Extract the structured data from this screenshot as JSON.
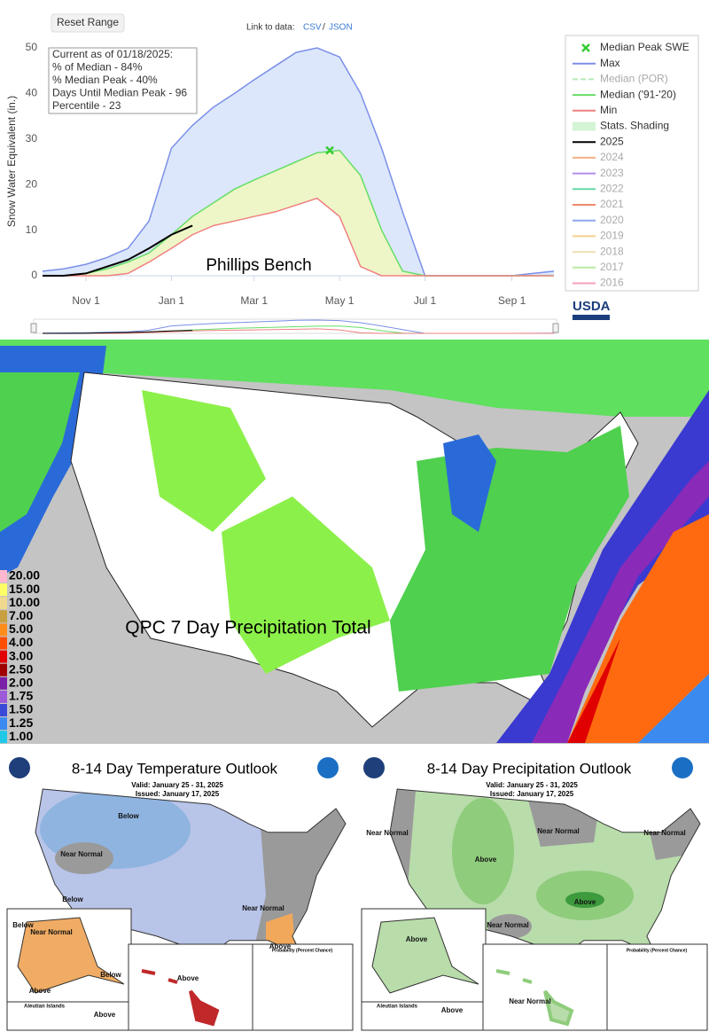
{
  "chart_data": {
    "type": "line",
    "title": "Phillips Bench",
    "y_label": "Snow Water Equivalent (in.)",
    "annotation": [
      "Current as of 01/18/2025:",
      "% of Median - 84%",
      "% Median Peak - 40%",
      "Days Until Median Peak - 96",
      "Percentile - 23"
    ],
    "x": [
      0,
      15,
      31,
      46,
      61,
      76,
      92,
      107,
      122,
      137,
      151,
      166,
      181,
      196,
      212,
      227,
      242,
      257,
      273,
      288,
      304,
      319,
      335,
      350,
      365
    ],
    "xlim": [
      0,
      365
    ],
    "xticks": [
      {
        "value": 31,
        "label": "Nov 1"
      },
      {
        "value": 92,
        "label": "Jan 1"
      },
      {
        "value": 151,
        "label": "Mar 1"
      },
      {
        "value": 212,
        "label": "May 1"
      },
      {
        "value": 273,
        "label": "Jul 1"
      },
      {
        "value": 335,
        "label": "Sep 1"
      }
    ],
    "ylim": [
      0,
      50
    ],
    "yticks": [
      0,
      10,
      20,
      30,
      40,
      50
    ],
    "grid": false,
    "series": [
      {
        "name": "Max",
        "color": "#7b8fe8",
        "values": [
          1,
          1.5,
          2.5,
          4,
          6,
          12,
          28,
          33,
          37,
          40,
          43,
          46,
          49,
          50,
          48,
          40,
          28,
          14,
          0,
          0,
          0,
          0,
          0,
          0.5,
          1
        ]
      },
      {
        "name": "Median ('91-'20)",
        "color": "#66dd66",
        "values": [
          0,
          0,
          0.5,
          1.5,
          3,
          5,
          9,
          13,
          16,
          19,
          21,
          23,
          25,
          27,
          27.5,
          22,
          10,
          1,
          0,
          0,
          0,
          0,
          0,
          0,
          0
        ]
      },
      {
        "name": "Min",
        "color": "#f08080",
        "values": [
          0,
          0,
          0,
          0,
          0.5,
          3,
          6,
          9,
          11,
          12,
          13,
          14,
          15.5,
          17,
          13,
          2,
          0,
          0,
          0,
          0,
          0,
          0,
          0,
          0,
          0
        ]
      },
      {
        "name": "2025",
        "color": "#000000",
        "values": [
          0,
          0,
          0.5,
          2,
          3.5,
          6,
          9,
          11,
          null,
          null,
          null,
          null,
          null,
          null,
          null,
          null,
          null,
          null,
          null,
          null,
          null,
          null,
          null,
          null,
          null
        ]
      }
    ],
    "median_peak": {
      "name": "Median Peak SWE",
      "x": 205,
      "value": 27.5,
      "color": "#33cc33"
    },
    "shading": {
      "name": "Stats. Shading",
      "color": "#d4f5d4"
    },
    "inactive_series": [
      {
        "name": "Median (POR)",
        "color": "#b8eab8"
      },
      {
        "name": "2024",
        "color": "#f4b183"
      },
      {
        "name": "2023",
        "color": "#b48be8"
      },
      {
        "name": "2022",
        "color": "#66d9a6"
      },
      {
        "name": "2021",
        "color": "#f08a6a"
      },
      {
        "name": "2020",
        "color": "#8fa8ee"
      },
      {
        "name": "2019",
        "color": "#f5cf8a"
      },
      {
        "name": "2018",
        "color": "#f0e0b0"
      },
      {
        "name": "2017",
        "color": "#b8eaa0"
      },
      {
        "name": "2016",
        "color": "#f4a0b8"
      }
    ]
  },
  "controls": {
    "reset": "Reset Range",
    "link_label": "Link to data:",
    "csv": "CSV",
    "separator": "/",
    "json": "JSON"
  },
  "logo": "USDA",
  "precip_map": {
    "title": "QPC 7 Day Precipitation Total",
    "legend": [
      {
        "label": "20.00",
        "color": "#ffb8d0"
      },
      {
        "label": "15.00",
        "color": "#ffff66"
      },
      {
        "label": "10.00",
        "color": "#f0d890"
      },
      {
        "label": "7.00",
        "color": "#c8a040"
      },
      {
        "label": "5.00",
        "color": "#ff8c1a"
      },
      {
        "label": "4.00",
        "color": "#ff4d00"
      },
      {
        "label": "3.00",
        "color": "#e00000"
      },
      {
        "label": "2.50",
        "color": "#a00000"
      },
      {
        "label": "2.00",
        "color": "#7a1fa8"
      },
      {
        "label": "1.75",
        "color": "#9c5ad8"
      },
      {
        "label": "1.50",
        "color": "#3a4ad8"
      },
      {
        "label": "1.25",
        "color": "#3a8af0"
      },
      {
        "label": "1.00",
        "color": "#20c8e8"
      }
    ]
  },
  "temp_outlook": {
    "title": "8-14 Day Temperature Outlook",
    "valid": "Valid: January 25 - 31, 2025",
    "issued": "Issued: January 17, 2025",
    "legend_title": "Probability (Percent Chance)",
    "labels": [
      "Below",
      "Near Normal",
      "Below",
      "Near Normal",
      "Above",
      "Below",
      "Near Normal",
      "Above",
      "Below",
      "Aleutian Islands",
      "Above",
      "Above"
    ]
  },
  "precip_outlook": {
    "title": "8-14 Day Precipitation Outlook",
    "valid": "Valid: January 25 - 31, 2025",
    "issued": "Issued: January 17, 2025",
    "legend_title": "Probability (Percent Chance)",
    "labels": [
      "Near Normal",
      "Near Normal",
      "Above",
      "Near Normal",
      "Near Normal",
      "Above",
      "Above",
      "Above",
      "Near Normal",
      "Aleutian Islands"
    ]
  }
}
